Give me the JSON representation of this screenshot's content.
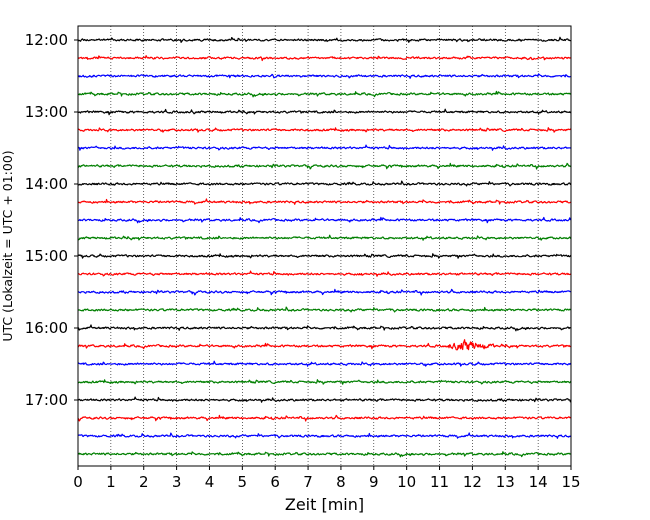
{
  "chart_data": {
    "type": "line",
    "title": "",
    "xlabel": "Zeit  [min]",
    "ylabel": "UTC (Lokalzeit = UTC + 01:00)",
    "xlim": [
      0,
      15
    ],
    "xticks": [
      "0",
      "1",
      "2",
      "3",
      "4",
      "5",
      "6",
      "7",
      "8",
      "9",
      "10",
      "11",
      "12",
      "13",
      "14",
      "15"
    ],
    "y_tick_labels": [
      "12:00",
      "13:00",
      "14:00",
      "15:00",
      "16:00",
      "17:00"
    ],
    "grid": "vertical dotted",
    "trace_interval_minutes": 15,
    "trace_colors": [
      "#000000",
      "#ff0000",
      "#0000ff",
      "#007f00"
    ],
    "traces": [
      {
        "start": "12:00",
        "color": "#000000"
      },
      {
        "start": "12:15",
        "color": "#ff0000"
      },
      {
        "start": "12:30",
        "color": "#0000ff"
      },
      {
        "start": "12:45",
        "color": "#007f00"
      },
      {
        "start": "13:00",
        "color": "#000000"
      },
      {
        "start": "13:15",
        "color": "#ff0000"
      },
      {
        "start": "13:30",
        "color": "#0000ff"
      },
      {
        "start": "13:45",
        "color": "#007f00"
      },
      {
        "start": "14:00",
        "color": "#000000"
      },
      {
        "start": "14:15",
        "color": "#ff0000"
      },
      {
        "start": "14:30",
        "color": "#0000ff"
      },
      {
        "start": "14:45",
        "color": "#007f00"
      },
      {
        "start": "15:00",
        "color": "#000000"
      },
      {
        "start": "15:15",
        "color": "#ff0000"
      },
      {
        "start": "15:30",
        "color": "#0000ff"
      },
      {
        "start": "15:45",
        "color": "#007f00"
      },
      {
        "start": "16:00",
        "color": "#000000"
      },
      {
        "start": "16:15",
        "color": "#ff0000",
        "event_minute": 11.8
      },
      {
        "start": "16:30",
        "color": "#0000ff"
      },
      {
        "start": "16:45",
        "color": "#007f00"
      },
      {
        "start": "17:00",
        "color": "#000000"
      },
      {
        "start": "17:15",
        "color": "#ff0000"
      },
      {
        "start": "17:30",
        "color": "#0000ff"
      },
      {
        "start": "17:45",
        "color": "#007f00"
      }
    ]
  }
}
